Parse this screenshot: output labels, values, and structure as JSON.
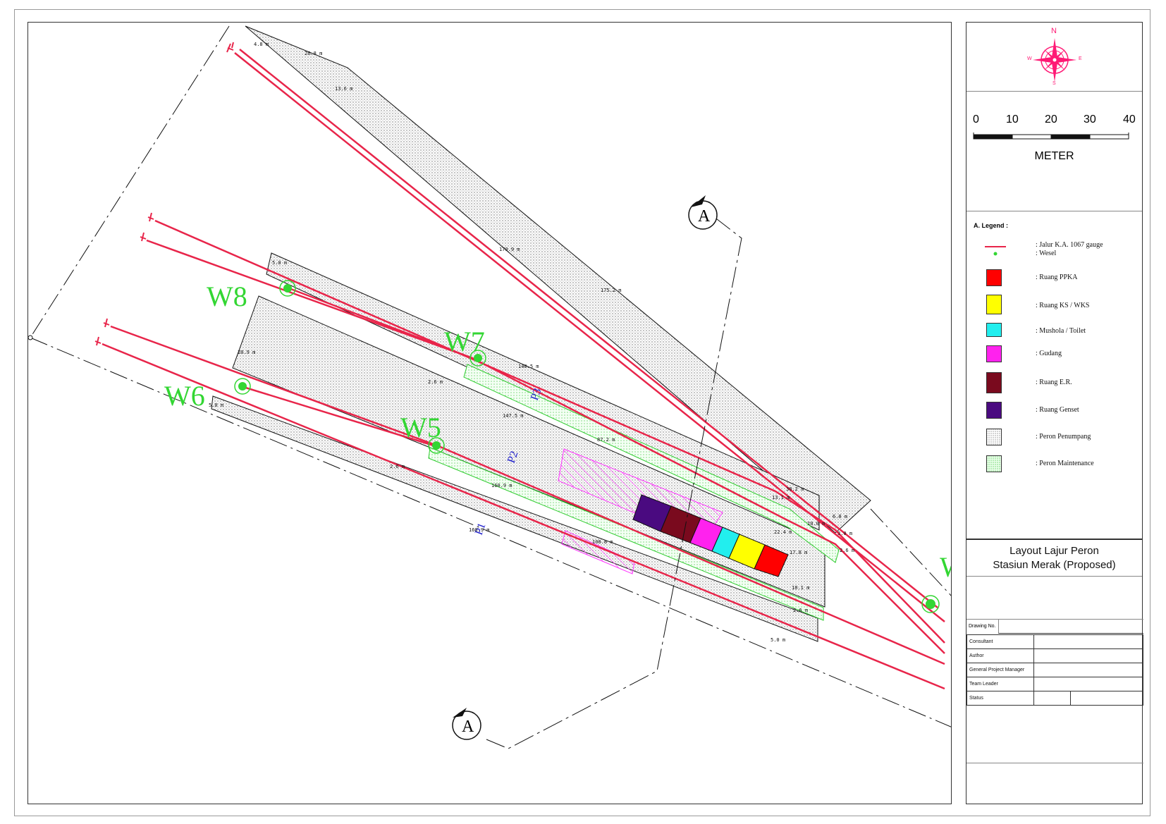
{
  "compass": {
    "n": "N",
    "s": "S",
    "e": "E",
    "w": "W"
  },
  "scale": {
    "ticks": [
      "0",
      "10",
      "20",
      "30",
      "40"
    ],
    "unit": "METER"
  },
  "legend": {
    "title": "A. Legend :",
    "items": [
      {
        "label": ":  Jalur K.A. 1067 gauge",
        "symbol": "red-line",
        "color": "#e8254a"
      },
      {
        "label": ":  Wesel",
        "symbol": "green-dot",
        "color": "#33d633"
      },
      {
        "label": ":  Ruang PPKA",
        "symbol": "swatch",
        "color": "#ff0000"
      },
      {
        "label": ":  Ruang KS / WKS",
        "symbol": "swatch",
        "color": "#ffff00"
      },
      {
        "label": ":  Mushola / Toilet",
        "symbol": "swatch",
        "color": "#22eeee"
      },
      {
        "label": ":  Gudang",
        "symbol": "swatch",
        "color": "#ff22ee"
      },
      {
        "label": ":  Ruang E.R.",
        "symbol": "swatch",
        "color": "#7a0a1e"
      },
      {
        "label": ":  Ruang Genset",
        "symbol": "swatch",
        "color": "#4a0a80"
      },
      {
        "label": ":  Peron Penumpang",
        "symbol": "dots",
        "color": "#c8c8c8"
      },
      {
        "label": ":  Peron Maintenance",
        "symbol": "green-dots",
        "color": "#bff5bf"
      }
    ]
  },
  "title": {
    "line1": "Layout Lajur Peron",
    "line2": "Stasiun Merak (Proposed)"
  },
  "info_table": {
    "drawing_no": "Drawing No.",
    "rows": [
      "Consultant",
      "Author",
      "General Project Manager",
      "Team Leader",
      "Status"
    ]
  },
  "drawing": {
    "switches": [
      "W8",
      "W7",
      "W6",
      "W5",
      "W"
    ],
    "platforms": [
      "P1",
      "P2",
      "P3"
    ],
    "section_marker": "A",
    "dimensions": [
      "4.8 m",
      "26.8 m",
      "13.6 m",
      "170.9 m",
      "175.2 m",
      "5.0 m",
      "20.9 m",
      "2.6 m",
      "140.5 m",
      "5.0 m",
      "147.5 m",
      "87.2 m",
      "2.6 m",
      "160.9 m",
      "160.9 m",
      "108.8 m",
      "30.2 m",
      "13.1 m",
      "6.8 m",
      "10.0 m",
      "3.0 m",
      "22.4 m",
      "2.6 m",
      "17.8 m",
      "10.1 m",
      "2.6 m",
      "5.0 m"
    ]
  }
}
